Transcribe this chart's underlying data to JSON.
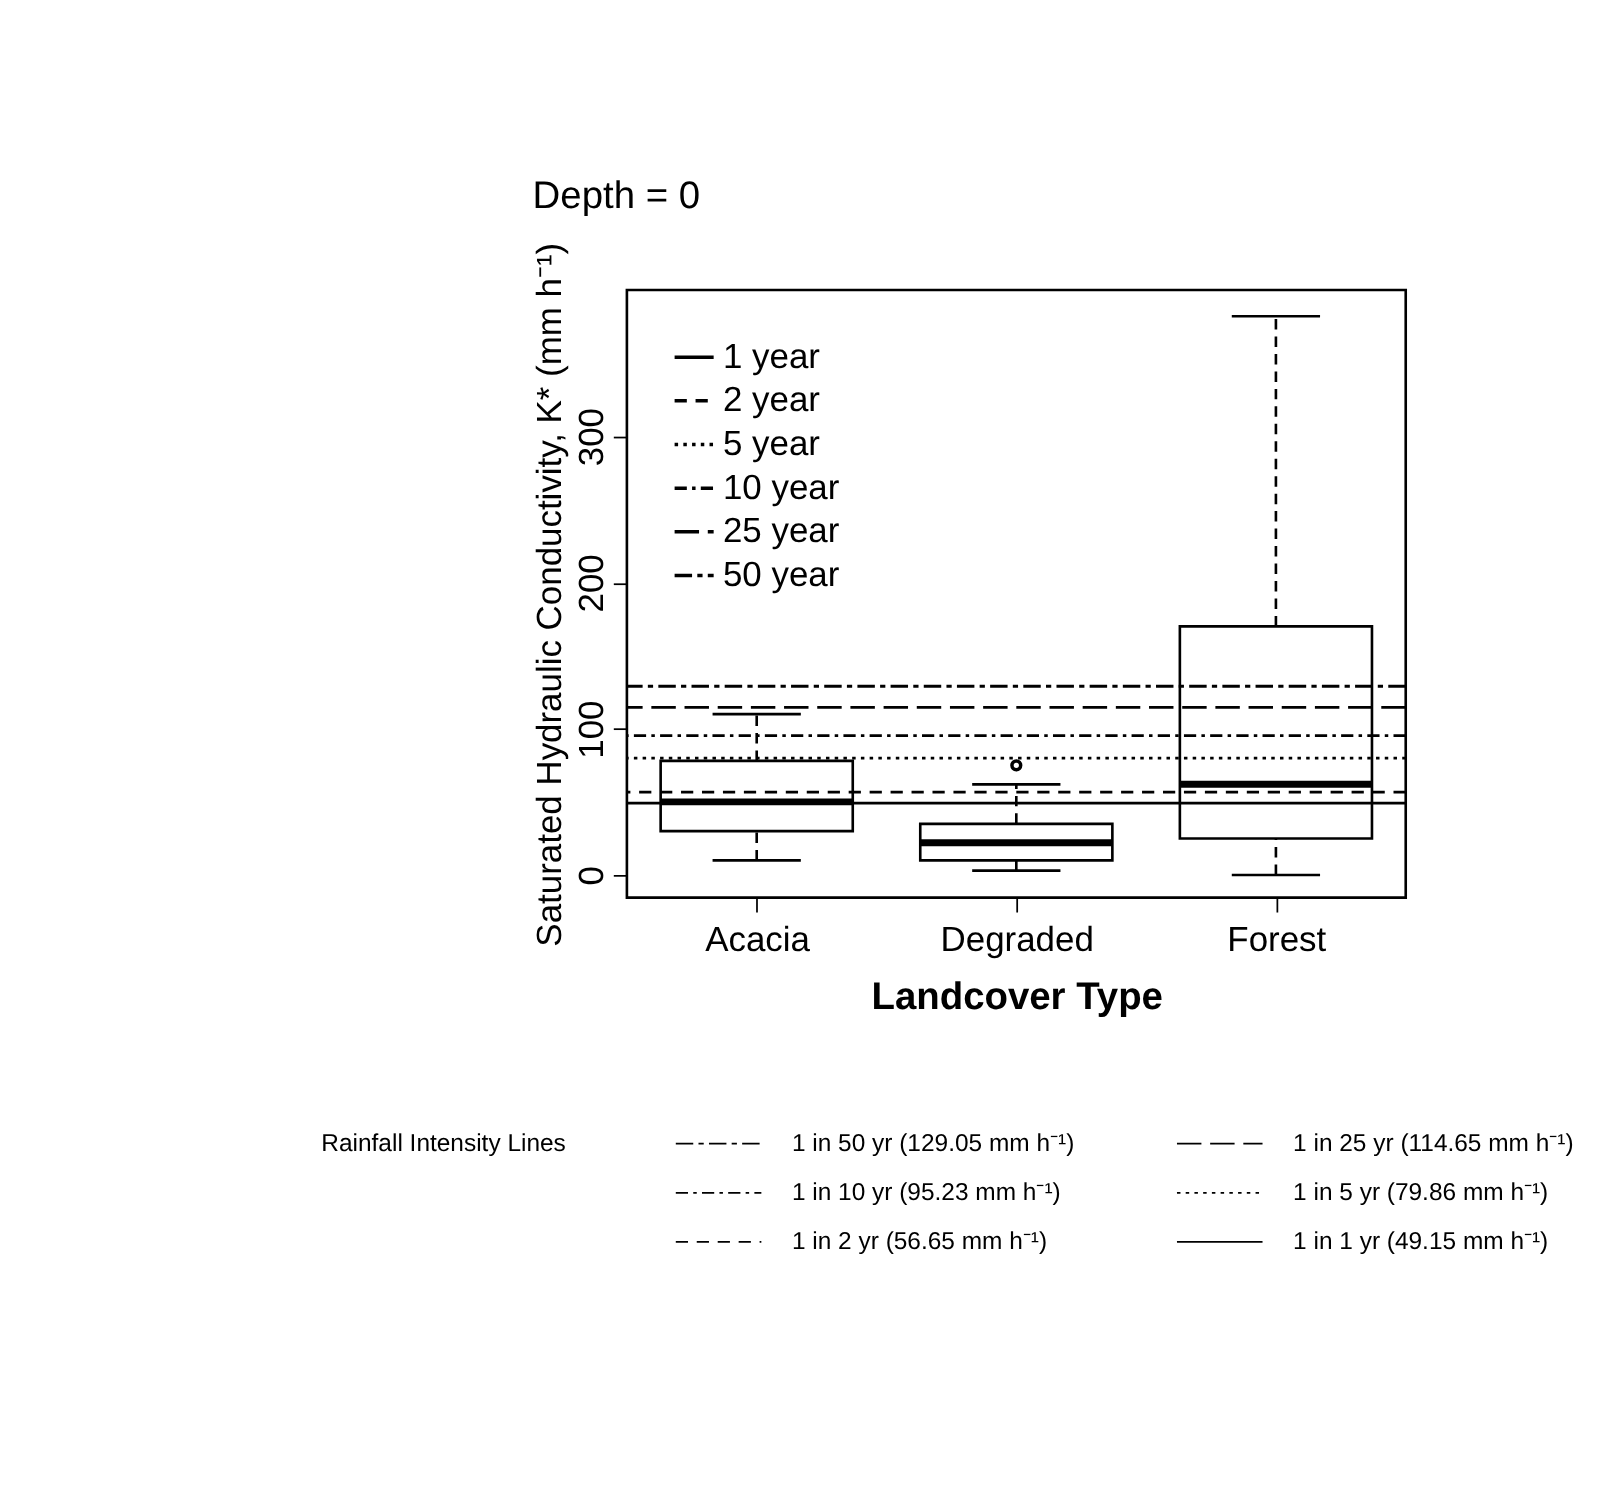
{
  "chart_data": {
    "type": "box",
    "title": "Depth = 0",
    "xlabel": "Landcover Type",
    "ylabel": "Saturated Hydraulic Conductivity, K* (mm h⁻¹)",
    "categories": [
      "Acacia",
      "Degraded",
      "Forest"
    ],
    "boxes": [
      {
        "low": 10,
        "q1": 30,
        "median": 50,
        "q3": 78,
        "high": 110
      },
      {
        "low": 3,
        "q1": 10,
        "median": 22,
        "q3": 35,
        "high": 62,
        "outliers": [
          75
        ]
      },
      {
        "low": 0,
        "q1": 25,
        "median": 62,
        "q3": 170,
        "high": 382
      }
    ],
    "ylim": [
      -15.5,
      400
    ],
    "yticks": [
      0,
      100,
      200,
      300
    ],
    "grid": false,
    "legend": "top left",
    "ref_lines": [
      {
        "axis": "y",
        "value": 49.15,
        "label": "1 year",
        "line_style": "solid"
      },
      {
        "axis": "y",
        "value": 56.65,
        "label": "2 year",
        "line_style": "dashed"
      },
      {
        "axis": "y",
        "value": 79.86,
        "label": "5 year",
        "line_style": "dotted"
      },
      {
        "axis": "y",
        "value": 95.23,
        "label": "10 year",
        "line_style": "dashdot"
      },
      {
        "axis": "y",
        "value": 114.65,
        "label": "25 year",
        "line_style": "longdash"
      },
      {
        "axis": "y",
        "value": 129.05,
        "label": "50 year",
        "line_style": "twodash"
      }
    ],
    "annotations": [
      "Rainfall Intensity Lines",
      "1 in 50 yr (129.05 mm h⁻¹)",
      "1 in 25 yr (114.65 mm h⁻¹)",
      "1 in 10 yr (95.23 mm h⁻¹)",
      "1 in 5 yr (79.86 mm h⁻¹)",
      "1 in 2 yr (56.65 mm h⁻¹)",
      "1 in 1 yr (49.15 mm h⁻¹)"
    ]
  }
}
